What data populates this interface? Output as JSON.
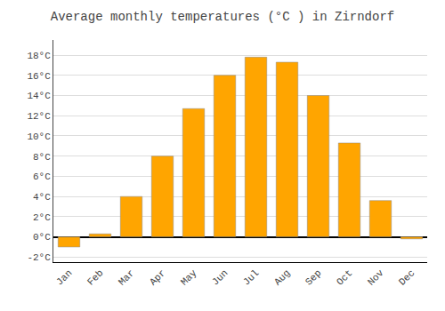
{
  "chart_data": {
    "type": "bar",
    "title": "Average monthly temperatures (°C ) in Zirndorf",
    "categories": [
      "Jan",
      "Feb",
      "Mar",
      "Apr",
      "May",
      "Jun",
      "Jul",
      "Aug",
      "Sep",
      "Oct",
      "Nov",
      "Dec"
    ],
    "values": [
      -1.0,
      0.3,
      4.0,
      8.0,
      12.7,
      16.0,
      17.8,
      17.3,
      14.0,
      9.3,
      3.6,
      -0.2
    ],
    "color": "#FFA500",
    "ylim": [
      -2.5,
      19.5
    ],
    "yticks": [
      {
        "value": -2,
        "label": "-2°C"
      },
      {
        "value": 0,
        "label": "0°C"
      },
      {
        "value": 2,
        "label": "2°C"
      },
      {
        "value": 4,
        "label": "4°C"
      },
      {
        "value": 6,
        "label": "6°C"
      },
      {
        "value": 8,
        "label": "8°C"
      },
      {
        "value": 10,
        "label": "10°C"
      },
      {
        "value": 12,
        "label": "12°C"
      },
      {
        "value": 14,
        "label": "14°C"
      },
      {
        "value": 16,
        "label": "16°C"
      },
      {
        "value": 18,
        "label": "18°C"
      }
    ],
    "grid": true
  }
}
